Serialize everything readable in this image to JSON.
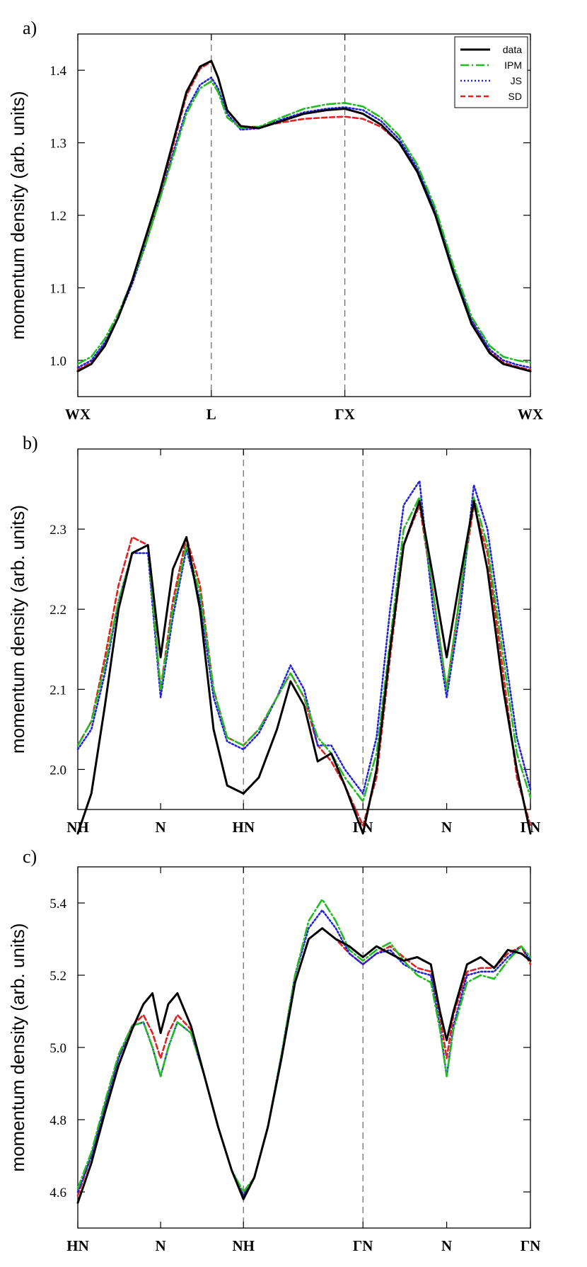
{
  "chart_data": [
    {
      "type": "line",
      "panel_label": "a)",
      "ylabel": "momentum density (arb. units)",
      "xlim": [
        0,
        1
      ],
      "ylim": [
        0.95,
        1.45
      ],
      "yticks": [
        1.0,
        1.1,
        1.2,
        1.3,
        1.4
      ],
      "ytick_labels": [
        "1.0",
        "1.1",
        "1.2",
        "1.3",
        "1.4"
      ],
      "xticks": [
        0,
        0.295,
        0.59,
        1.0
      ],
      "xtick_labels": [
        "WX",
        "L",
        "ΓX",
        "WX"
      ],
      "vlines": [
        0.295,
        0.59
      ],
      "legend": [
        "data",
        "IPM",
        "JS",
        "SD"
      ],
      "legend_position": "top-right",
      "series": [
        {
          "name": "data",
          "color": "#000000",
          "dash": "solid",
          "x": [
            0,
            0.03,
            0.06,
            0.09,
            0.12,
            0.15,
            0.18,
            0.21,
            0.24,
            0.27,
            0.295,
            0.31,
            0.33,
            0.36,
            0.4,
            0.45,
            0.5,
            0.55,
            0.59,
            0.63,
            0.67,
            0.71,
            0.75,
            0.79,
            0.83,
            0.87,
            0.91,
            0.94,
            0.97,
            1.0
          ],
          "y": [
            0.985,
            0.995,
            1.02,
            1.06,
            1.11,
            1.17,
            1.23,
            1.3,
            1.37,
            1.405,
            1.413,
            1.39,
            1.345,
            1.323,
            1.32,
            1.33,
            1.34,
            1.345,
            1.347,
            1.34,
            1.325,
            1.3,
            1.26,
            1.2,
            1.12,
            1.05,
            1.01,
            0.995,
            0.99,
            0.985
          ]
        },
        {
          "name": "IPM",
          "color": "#22bb22",
          "dash": "dashdot",
          "x": [
            0,
            0.03,
            0.06,
            0.09,
            0.12,
            0.15,
            0.18,
            0.21,
            0.24,
            0.27,
            0.295,
            0.31,
            0.33,
            0.36,
            0.4,
            0.45,
            0.5,
            0.55,
            0.59,
            0.63,
            0.67,
            0.71,
            0.75,
            0.79,
            0.83,
            0.87,
            0.91,
            0.94,
            0.97,
            1.0
          ],
          "y": [
            0.995,
            1.005,
            1.03,
            1.065,
            1.11,
            1.16,
            1.22,
            1.28,
            1.34,
            1.375,
            1.385,
            1.37,
            1.335,
            1.32,
            1.322,
            1.335,
            1.347,
            1.353,
            1.355,
            1.35,
            1.335,
            1.31,
            1.27,
            1.21,
            1.13,
            1.06,
            1.02,
            1.005,
            1.0,
            0.997
          ]
        },
        {
          "name": "JS",
          "color": "#2222dd",
          "dash": "dotted",
          "x": [
            0,
            0.03,
            0.06,
            0.09,
            0.12,
            0.15,
            0.18,
            0.21,
            0.24,
            0.27,
            0.295,
            0.31,
            0.33,
            0.36,
            0.4,
            0.45,
            0.5,
            0.55,
            0.59,
            0.63,
            0.67,
            0.71,
            0.75,
            0.79,
            0.83,
            0.87,
            0.91,
            0.94,
            0.97,
            1.0
          ],
          "y": [
            0.99,
            1.0,
            1.025,
            1.06,
            1.105,
            1.16,
            1.22,
            1.285,
            1.345,
            1.38,
            1.39,
            1.375,
            1.34,
            1.318,
            1.32,
            1.332,
            1.342,
            1.347,
            1.349,
            1.345,
            1.33,
            1.305,
            1.265,
            1.205,
            1.125,
            1.055,
            1.015,
            1.0,
            0.994,
            0.99
          ]
        },
        {
          "name": "SD",
          "color": "#dd2222",
          "dash": "dashed",
          "x": [
            0,
            0.03,
            0.06,
            0.09,
            0.12,
            0.15,
            0.18,
            0.21,
            0.24,
            0.27,
            0.295,
            0.31,
            0.33,
            0.36,
            0.4,
            0.45,
            0.5,
            0.55,
            0.59,
            0.63,
            0.67,
            0.71,
            0.75,
            0.79,
            0.83,
            0.87,
            0.91,
            0.94,
            0.97,
            1.0
          ],
          "y": [
            0.987,
            0.997,
            1.022,
            1.06,
            1.11,
            1.165,
            1.225,
            1.295,
            1.365,
            1.402,
            1.412,
            1.39,
            1.345,
            1.322,
            1.322,
            1.328,
            1.333,
            1.335,
            1.336,
            1.333,
            1.322,
            1.3,
            1.262,
            1.205,
            1.125,
            1.055,
            1.012,
            0.997,
            0.991,
            0.987
          ]
        }
      ]
    },
    {
      "type": "line",
      "panel_label": "b)",
      "ylabel": "momentum density (arb. units)",
      "xlim": [
        0,
        1
      ],
      "ylim": [
        1.95,
        2.4
      ],
      "yticks": [
        2.0,
        2.1,
        2.2,
        2.3
      ],
      "ytick_labels": [
        "2.0",
        "2.1",
        "2.2",
        "2.3"
      ],
      "xticks": [
        0,
        0.183,
        0.366,
        0.63,
        0.815,
        1.0
      ],
      "xtick_labels": [
        "NH",
        "N",
        "HN",
        "ΓN",
        "N",
        "ΓN"
      ],
      "vlines": [
        0.366,
        0.63
      ],
      "series": [
        {
          "name": "data",
          "color": "#000000",
          "dash": "solid",
          "x": [
            0,
            0.03,
            0.06,
            0.09,
            0.12,
            0.155,
            0.183,
            0.21,
            0.24,
            0.27,
            0.3,
            0.33,
            0.366,
            0.4,
            0.44,
            0.47,
            0.5,
            0.53,
            0.56,
            0.59,
            0.63,
            0.66,
            0.69,
            0.72,
            0.755,
            0.785,
            0.815,
            0.845,
            0.875,
            0.905,
            0.94,
            0.97,
            1.0
          ],
          "y": [
            1.92,
            1.97,
            2.08,
            2.2,
            2.27,
            2.28,
            2.14,
            2.25,
            2.29,
            2.2,
            2.05,
            1.98,
            1.97,
            1.99,
            2.05,
            2.11,
            2.08,
            2.01,
            2.02,
            1.98,
            1.92,
            2.0,
            2.15,
            2.28,
            2.335,
            2.24,
            2.14,
            2.24,
            2.335,
            2.25,
            2.1,
            2.0,
            1.92
          ]
        },
        {
          "name": "IPM",
          "color": "#22bb22",
          "dash": "dashdot",
          "x": [
            0,
            0.03,
            0.06,
            0.09,
            0.12,
            0.155,
            0.183,
            0.21,
            0.24,
            0.27,
            0.3,
            0.33,
            0.366,
            0.4,
            0.44,
            0.47,
            0.5,
            0.53,
            0.56,
            0.59,
            0.63,
            0.66,
            0.69,
            0.72,
            0.755,
            0.785,
            0.815,
            0.845,
            0.875,
            0.905,
            0.94,
            0.97,
            1.0
          ],
          "y": [
            2.03,
            2.06,
            2.13,
            2.21,
            2.27,
            2.28,
            2.1,
            2.2,
            2.28,
            2.22,
            2.1,
            2.04,
            2.03,
            2.05,
            2.09,
            2.12,
            2.09,
            2.04,
            2.02,
            1.99,
            1.96,
            2.02,
            2.16,
            2.3,
            2.34,
            2.22,
            2.1,
            2.22,
            2.34,
            2.28,
            2.14,
            2.02,
            1.965
          ]
        },
        {
          "name": "JS",
          "color": "#2222dd",
          "dash": "dotted",
          "x": [
            0,
            0.03,
            0.06,
            0.09,
            0.12,
            0.155,
            0.183,
            0.21,
            0.24,
            0.27,
            0.3,
            0.33,
            0.366,
            0.4,
            0.44,
            0.47,
            0.5,
            0.53,
            0.56,
            0.59,
            0.63,
            0.66,
            0.69,
            0.72,
            0.755,
            0.785,
            0.815,
            0.845,
            0.875,
            0.905,
            0.94,
            0.97,
            1.0
          ],
          "y": [
            2.025,
            2.05,
            2.12,
            2.21,
            2.27,
            2.27,
            2.09,
            2.19,
            2.275,
            2.21,
            2.09,
            2.035,
            2.025,
            2.045,
            2.09,
            2.13,
            2.1,
            2.03,
            2.03,
            2.0,
            1.97,
            2.04,
            2.2,
            2.33,
            2.36,
            2.2,
            2.09,
            2.2,
            2.355,
            2.3,
            2.16,
            2.04,
            1.975
          ]
        },
        {
          "name": "SD",
          "color": "#dd2222",
          "dash": "dashed",
          "x": [
            0,
            0.03,
            0.06,
            0.09,
            0.12,
            0.155,
            0.183,
            0.21,
            0.24,
            0.27,
            0.3,
            0.33,
            0.366,
            0.4,
            0.44,
            0.47,
            0.5,
            0.53,
            0.56,
            0.59,
            0.63,
            0.66,
            0.69,
            0.72,
            0.755,
            0.785,
            0.815,
            0.845,
            0.875,
            0.905,
            0.94,
            0.97,
            1.0
          ],
          "y": [
            2.03,
            2.06,
            2.14,
            2.23,
            2.29,
            2.28,
            2.1,
            2.21,
            2.29,
            2.23,
            2.1,
            2.04,
            2.03,
            2.05,
            2.09,
            2.12,
            2.09,
            2.03,
            2.01,
            1.98,
            1.93,
            1.99,
            2.14,
            2.28,
            2.33,
            2.22,
            2.1,
            2.22,
            2.33,
            2.27,
            2.12,
            1.99,
            1.93
          ]
        }
      ]
    },
    {
      "type": "line",
      "panel_label": "c)",
      "ylabel": "momentum density (arb. units)",
      "xlim": [
        0,
        1
      ],
      "ylim": [
        4.5,
        5.5
      ],
      "yticks": [
        4.6,
        4.8,
        5.0,
        5.2,
        5.4
      ],
      "ytick_labels": [
        "4.6",
        "4.8",
        "5.0",
        "5.2",
        "5.4"
      ],
      "xticks": [
        0,
        0.183,
        0.366,
        0.63,
        0.815,
        1.0
      ],
      "xtick_labels": [
        "HN",
        "N",
        "NH",
        "ΓN",
        "N",
        "ΓN"
      ],
      "vlines": [
        0.366,
        0.63
      ],
      "series": [
        {
          "name": "data",
          "color": "#000000",
          "dash": "solid",
          "x": [
            0,
            0.03,
            0.06,
            0.09,
            0.12,
            0.145,
            0.165,
            0.183,
            0.2,
            0.22,
            0.25,
            0.28,
            0.31,
            0.34,
            0.366,
            0.39,
            0.42,
            0.45,
            0.48,
            0.51,
            0.54,
            0.57,
            0.6,
            0.63,
            0.66,
            0.69,
            0.72,
            0.75,
            0.78,
            0.8,
            0.815,
            0.83,
            0.86,
            0.89,
            0.92,
            0.95,
            0.98,
            1.0
          ],
          "y": [
            4.57,
            4.68,
            4.82,
            4.95,
            5.05,
            5.12,
            5.15,
            5.04,
            5.12,
            5.15,
            5.06,
            4.92,
            4.78,
            4.66,
            4.58,
            4.64,
            4.78,
            4.97,
            5.18,
            5.3,
            5.33,
            5.3,
            5.28,
            5.25,
            5.28,
            5.26,
            5.24,
            5.25,
            5.23,
            5.1,
            5.02,
            5.1,
            5.23,
            5.25,
            5.22,
            5.27,
            5.26,
            5.24
          ]
        },
        {
          "name": "IPM",
          "color": "#22bb22",
          "dash": "dashdot",
          "x": [
            0,
            0.03,
            0.06,
            0.09,
            0.12,
            0.145,
            0.165,
            0.183,
            0.2,
            0.22,
            0.25,
            0.28,
            0.31,
            0.34,
            0.366,
            0.39,
            0.42,
            0.45,
            0.48,
            0.51,
            0.54,
            0.57,
            0.6,
            0.63,
            0.66,
            0.69,
            0.72,
            0.75,
            0.78,
            0.8,
            0.815,
            0.83,
            0.86,
            0.89,
            0.92,
            0.95,
            0.98,
            1.0
          ],
          "y": [
            4.61,
            4.71,
            4.85,
            4.98,
            5.06,
            5.07,
            5.0,
            4.92,
            5.0,
            5.07,
            5.04,
            4.92,
            4.78,
            4.66,
            4.6,
            4.64,
            4.78,
            4.98,
            5.2,
            5.35,
            5.41,
            5.35,
            5.27,
            5.24,
            5.27,
            5.29,
            5.24,
            5.2,
            5.18,
            5.05,
            4.92,
            5.05,
            5.18,
            5.2,
            5.19,
            5.24,
            5.28,
            5.25
          ]
        },
        {
          "name": "JS",
          "color": "#2222dd",
          "dash": "dotted",
          "x": [
            0,
            0.03,
            0.06,
            0.09,
            0.12,
            0.145,
            0.165,
            0.183,
            0.2,
            0.22,
            0.25,
            0.28,
            0.31,
            0.34,
            0.366,
            0.39,
            0.42,
            0.45,
            0.48,
            0.51,
            0.54,
            0.57,
            0.6,
            0.63,
            0.66,
            0.69,
            0.72,
            0.75,
            0.78,
            0.8,
            0.815,
            0.83,
            0.86,
            0.89,
            0.92,
            0.95,
            0.98,
            1.0
          ],
          "y": [
            4.6,
            4.7,
            4.84,
            4.97,
            5.06,
            5.07,
            5.0,
            4.92,
            5.0,
            5.07,
            5.04,
            4.92,
            4.78,
            4.66,
            4.59,
            4.64,
            4.78,
            4.98,
            5.2,
            5.33,
            5.38,
            5.33,
            5.26,
            5.23,
            5.26,
            5.27,
            5.23,
            5.21,
            5.2,
            5.06,
            4.92,
            5.06,
            5.2,
            5.21,
            5.21,
            5.25,
            5.28,
            5.24
          ]
        },
        {
          "name": "SD",
          "color": "#dd2222",
          "dash": "dashed",
          "x": [
            0,
            0.03,
            0.06,
            0.09,
            0.12,
            0.145,
            0.165,
            0.183,
            0.2,
            0.22,
            0.25,
            0.28,
            0.31,
            0.34,
            0.366,
            0.39,
            0.42,
            0.45,
            0.48,
            0.51,
            0.54,
            0.57,
            0.6,
            0.63,
            0.66,
            0.69,
            0.72,
            0.75,
            0.78,
            0.8,
            0.815,
            0.83,
            0.86,
            0.89,
            0.92,
            0.95,
            0.98,
            1.0
          ],
          "y": [
            4.59,
            4.7,
            4.84,
            4.97,
            5.06,
            5.09,
            5.04,
            4.97,
            5.04,
            5.09,
            5.05,
            4.92,
            4.78,
            4.66,
            4.59,
            4.64,
            4.78,
            4.97,
            5.18,
            5.3,
            5.33,
            5.3,
            5.26,
            5.23,
            5.26,
            5.28,
            5.25,
            5.22,
            5.21,
            5.09,
            4.97,
            5.09,
            5.21,
            5.22,
            5.22,
            5.26,
            5.28,
            5.23
          ]
        }
      ]
    }
  ]
}
